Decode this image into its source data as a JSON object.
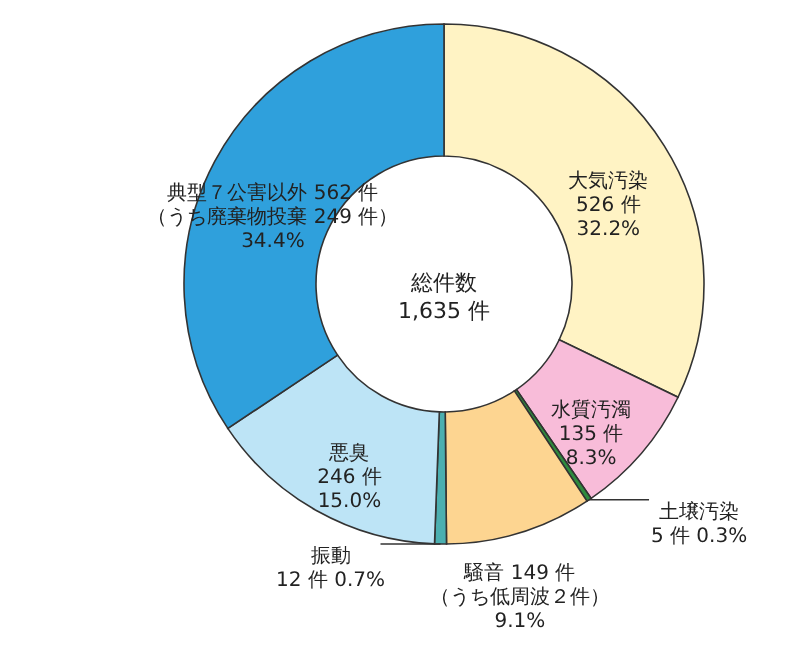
{
  "chart_data": {
    "type": "donut",
    "categories": [
      "大気汚染",
      "水質汚濁",
      "土壌汚染",
      "騒音",
      "振動",
      "悪臭",
      "典型７公害以外"
    ],
    "values": [
      526,
      135,
      5,
      149,
      12,
      246,
      562
    ],
    "value_labels": [
      "526 件\n32.2%",
      "135 件\n8.3%",
      "5 件 0.3%",
      "149 件（うち低周波２件）\n9.1%",
      "12 件 0.7%",
      "246 件\n15.0%",
      "562 件（うち廃棄物投棄 249 件）\n34.4%"
    ],
    "colors": [
      "#fff3c4",
      "#f8bcd9",
      "#2e8b3e",
      "#fdd591",
      "#4bafb0",
      "#bde4f6",
      "#2fa0dc"
    ],
    "annotations": [
      "総件数\n1,635 件"
    ]
  }
}
